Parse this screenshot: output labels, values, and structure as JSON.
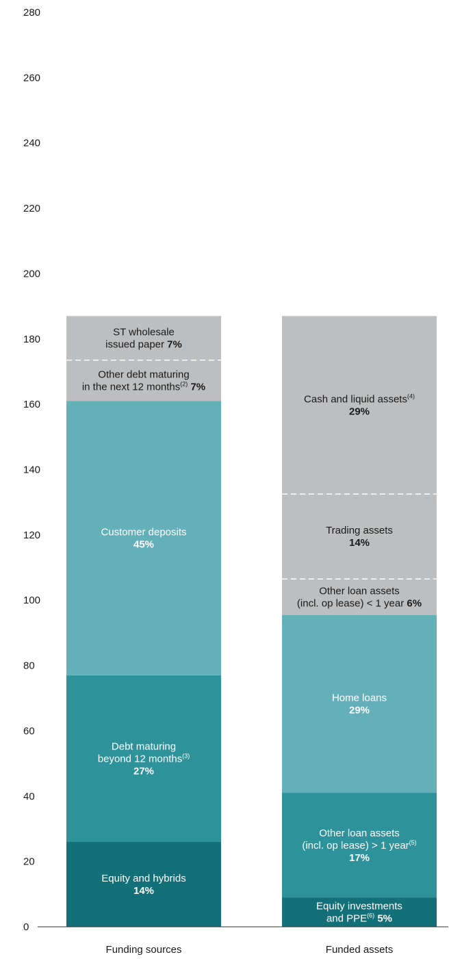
{
  "chart_data": {
    "type": "bar",
    "stacked": true,
    "ylim": [
      0,
      280
    ],
    "yticks": [
      0,
      20,
      40,
      60,
      80,
      100,
      120,
      140,
      160,
      180,
      200,
      220,
      240,
      260,
      280
    ],
    "grid": false,
    "categories": [
      "Funding sources",
      "Funded assets"
    ],
    "colors": {
      "grey": "#bdbec0",
      "light_teal": "#63b0b9",
      "mid_teal": "#2e929b",
      "dark_teal": "#136f78",
      "divider": "#ffffff"
    },
    "bars": [
      {
        "category": "Funding sources",
        "segments": [
          {
            "lines": [
              "Equity and hybrids"
            ],
            "pct": "14%",
            "pct_inline": false,
            "start": 0,
            "end": 26,
            "color": "dark_teal",
            "text_color": "#ffffff",
            "dashed_top": false
          },
          {
            "lines": [
              "Debt maturing",
              "beyond 12 months"
            ],
            "sup": "(3)",
            "pct": "27%",
            "pct_inline": false,
            "start": 26,
            "end": 77,
            "color": "mid_teal",
            "text_color": "#ffffff",
            "dashed_top": false
          },
          {
            "lines": [
              "Customer deposits"
            ],
            "pct": "45%",
            "pct_inline": false,
            "start": 77,
            "end": 161,
            "color": "light_teal",
            "text_color": "#ffffff",
            "dashed_top": false
          },
          {
            "lines": [
              "Other debt maturing",
              "in the next 12 months"
            ],
            "sup": "(2)",
            "pct": "7%",
            "pct_inline": true,
            "start": 161,
            "end": 173.5,
            "color": "grey",
            "text_color": "#1a1a1a",
            "dashed_top": true
          },
          {
            "lines": [
              "ST wholesale",
              "issued paper"
            ],
            "pct": "7%",
            "pct_inline": true,
            "start": 173.5,
            "end": 187,
            "color": "grey",
            "text_color": "#1a1a1a",
            "dashed_top": false
          }
        ]
      },
      {
        "category": "Funded assets",
        "segments": [
          {
            "lines": [
              "Equity investments",
              "and PPE"
            ],
            "sup": "(6)",
            "pct": "5%",
            "pct_inline": true,
            "start": 0,
            "end": 9,
            "color": "dark_teal",
            "text_color": "#ffffff",
            "dashed_top": false
          },
          {
            "lines": [
              "Other loan assets",
              "(incl. op lease) > 1 year"
            ],
            "sup": "(5)",
            "pct": "17%",
            "pct_inline": false,
            "start": 9,
            "end": 41,
            "color": "mid_teal",
            "text_color": "#ffffff",
            "dashed_top": false
          },
          {
            "lines": [
              "Home loans"
            ],
            "pct": "29%",
            "pct_inline": false,
            "start": 41,
            "end": 95.5,
            "color": "light_teal",
            "text_color": "#ffffff",
            "dashed_top": false
          },
          {
            "lines": [
              "Other loan assets",
              "(incl. op lease) < 1 year"
            ],
            "pct": "6%",
            "pct_inline": true,
            "start": 95.5,
            "end": 106.5,
            "color": "grey",
            "text_color": "#1a1a1a",
            "dashed_top": true
          },
          {
            "lines": [
              "Trading assets"
            ],
            "pct": "14%",
            "pct_inline": false,
            "start": 106.5,
            "end": 132.5,
            "color": "grey",
            "text_color": "#1a1a1a",
            "dashed_top": true
          },
          {
            "lines": [
              "Cash and liquid assets"
            ],
            "sup": "(4)",
            "pct": "29%",
            "pct_inline": false,
            "start": 132.5,
            "end": 187,
            "color": "grey",
            "text_color": "#1a1a1a",
            "dashed_top": false
          }
        ]
      }
    ]
  }
}
